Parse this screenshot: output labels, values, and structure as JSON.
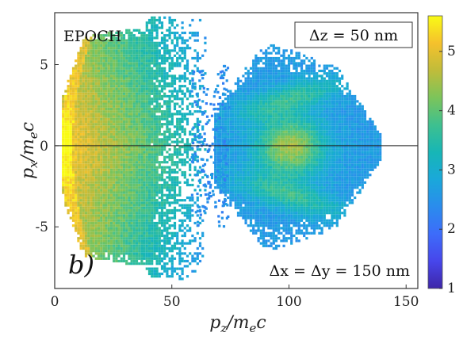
{
  "chart_data": {
    "type": "heatmap",
    "xlabel": "p_z/m_e c",
    "ylabel": "p_x/m_e c",
    "xlim": [
      0,
      155
    ],
    "ylim": [
      -8.8,
      8.2
    ],
    "x_ticks": [
      "0",
      "50",
      "100",
      "150"
    ],
    "x_tick_values": [
      0,
      50,
      100,
      150
    ],
    "y_ticks": [
      "5",
      "0",
      "-5"
    ],
    "y_tick_values": [
      5,
      0,
      -5
    ],
    "colorbar": {
      "min": 1,
      "max": 5.6,
      "ticks": [
        "1",
        "2",
        "3",
        "4",
        "5"
      ],
      "tick_values": [
        1,
        2,
        3,
        4,
        5
      ],
      "colormap": "parula"
    },
    "reference_line_y": 0,
    "annotations": {
      "code_label": "EPOCH",
      "top_right_label": "Δz = 50 nm",
      "panel_label": "b)",
      "bottom_right_label": "Δx = Δy = 150 nm"
    },
    "distribution": [
      {
        "region": "low-momentum bunch",
        "pz_range": [
          3,
          62
        ],
        "px_range": [
          -8,
          7.7
        ],
        "peak_level": 5.4
      },
      {
        "region": "high-momentum bunch",
        "pz_range": [
          70,
          138
        ],
        "px_range": [
          -6.5,
          6.5
        ],
        "peak_level": 4.6
      }
    ]
  }
}
